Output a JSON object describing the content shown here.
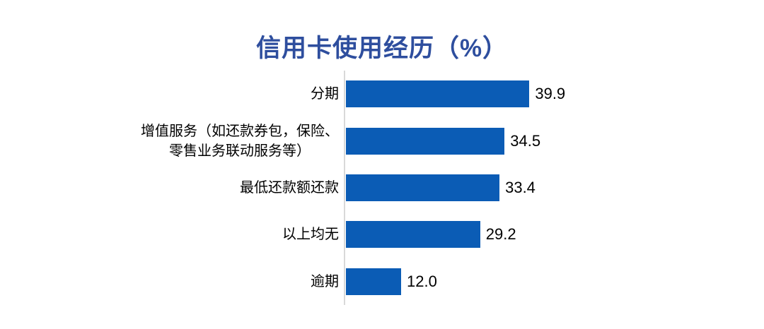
{
  "chart_data": {
    "type": "bar",
    "orientation": "horizontal",
    "title": "信用卡使用经历（%）",
    "categories": [
      "分期",
      "增值服务（如还款券包，保险、\n零售业务联动服务等）",
      "最低还款额还款",
      "以上均无",
      "逾期"
    ],
    "values": [
      39.9,
      34.5,
      33.4,
      29.2,
      12.0
    ],
    "value_labels": [
      "39.9",
      "34.5",
      "33.4",
      "29.2",
      "12.0"
    ],
    "xlabel": "",
    "ylabel": "",
    "xlim": [
      0,
      40
    ],
    "grid": false,
    "legend_position": "none",
    "bar_color": "#0B5CB5",
    "title_color": "#2E4E9E",
    "axis_line_color": "#D9D9D9"
  }
}
